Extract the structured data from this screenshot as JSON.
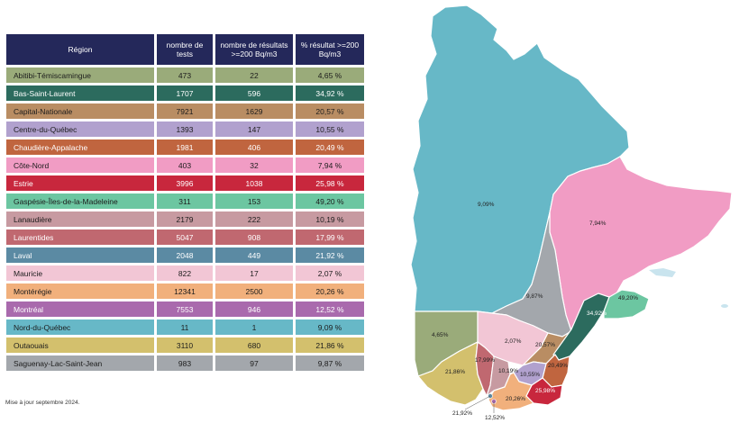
{
  "table": {
    "headers": [
      "Région",
      "nombre de tests",
      "nombre de résultats >=200 Bq/m3",
      "% résultat >=200 Bq/m3"
    ],
    "rows": [
      {
        "region": "Abitibi-Témiscamingue",
        "tests": "473",
        "results": "22",
        "percent": "4,65 %",
        "color": "#9aab7a"
      },
      {
        "region": "Bas-Saint-Laurent",
        "tests": "1707",
        "results": "596",
        "percent": "34,92 %",
        "color": "#2c6b5e"
      },
      {
        "region": "Capital-Nationale",
        "tests": "7921",
        "results": "1629",
        "percent": "20,57 %",
        "color": "#b98d63"
      },
      {
        "region": "Centre-du-Québec",
        "tests": "1393",
        "results": "147",
        "percent": "10,55 %",
        "color": "#b1a1ce"
      },
      {
        "region": "Chaudière-Appalache",
        "tests": "1981",
        "results": "406",
        "percent": "20,49 %",
        "color": "#c0653f"
      },
      {
        "region": "Côte-Nord",
        "tests": "403",
        "results": "32",
        "percent": "7,94 %",
        "color": "#f19cc4"
      },
      {
        "region": "Estrie",
        "tests": "3996",
        "results": "1038",
        "percent": "25,98 %",
        "color": "#c8273d"
      },
      {
        "region": "Gaspésie-Îles-de-la-Madeleine",
        "tests": "311",
        "results": "153",
        "percent": "49,20 %",
        "color": "#6cc6a1"
      },
      {
        "region": "Lanaudière",
        "tests": "2179",
        "results": "222",
        "percent": "10,19 %",
        "color": "#c79aa1"
      },
      {
        "region": "Laurentides",
        "tests": "5047",
        "results": "908",
        "percent": "17,99 %",
        "color": "#c06870"
      },
      {
        "region": "Laval",
        "tests": "2048",
        "results": "449",
        "percent": "21,92 %",
        "color": "#5b8aa3"
      },
      {
        "region": "Mauricie",
        "tests": "822",
        "results": "17",
        "percent": "2,07 %",
        "color": "#f2c6d5"
      },
      {
        "region": "Montérégie",
        "tests": "12341",
        "results": "2500",
        "percent": "20,26 %",
        "color": "#f1b07c"
      },
      {
        "region": "Montréal",
        "tests": "7553",
        "results": "946",
        "percent": "12,52 %",
        "color": "#a96aad"
      },
      {
        "region": "Nord-du-Québec",
        "tests": "11",
        "results": "1",
        "percent": "9,09 %",
        "color": "#67b8c7"
      },
      {
        "region": "Outaouais",
        "tests": "3110",
        "results": "680",
        "percent": "21,86 %",
        "color": "#d3c06d"
      },
      {
        "region": "Saguenay-Lac-Saint-Jean",
        "tests": "983",
        "results": "97",
        "percent": "9,87 %",
        "color": "#a3a7ac"
      }
    ]
  },
  "footnote": "Mise à jour septembre 2024.",
  "map": {
    "labels": {
      "nord_du_quebec": "9,09%",
      "cote_nord": "7,94%",
      "saguenay": "9,87%",
      "gaspesie": "49,20%",
      "bas_saint_laurent": "34,92%",
      "abitibi": "4,65%",
      "mauricie": "2,07%",
      "capitale_nationale": "20,57%",
      "chaudiere": "20,49%",
      "centre_du_quebec": "10,55%",
      "estrie": "25,98%",
      "monteregie": "20,26%",
      "laurentides": "17,99%",
      "lanaudiere": "10,19%",
      "outaouais": "21,86%",
      "laval": "21,92%",
      "montreal": "12,52%"
    }
  }
}
